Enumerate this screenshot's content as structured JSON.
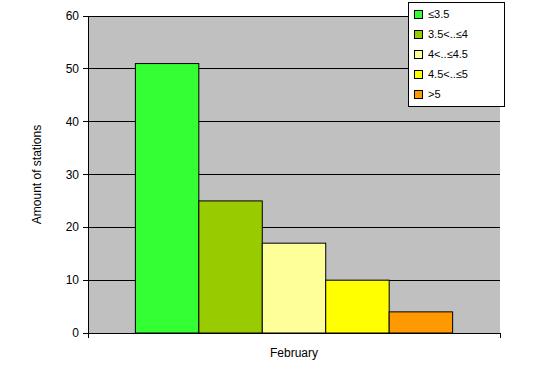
{
  "chart_data": {
    "type": "bar",
    "y_label": "Amount of stations",
    "categories": [
      "February"
    ],
    "series": [
      {
        "name": "≤3.5",
        "color": "#33ff33",
        "values": [
          51
        ]
      },
      {
        "name": "3.5<..≤4",
        "color": "#99cc00",
        "values": [
          25
        ]
      },
      {
        "name": "4<..≤4.5",
        "color": "#ffff99",
        "values": [
          17
        ]
      },
      {
        "name": "4.5<..≤5",
        "color": "#ffff00",
        "values": [
          10
        ]
      },
      {
        "name": ">5",
        "color": "#ff9900",
        "values": [
          4
        ]
      }
    ],
    "ylim": [
      0,
      60
    ],
    "yticks": [
      0,
      10,
      20,
      30,
      40,
      50,
      60
    ],
    "grid": true,
    "legend": "top-right"
  }
}
